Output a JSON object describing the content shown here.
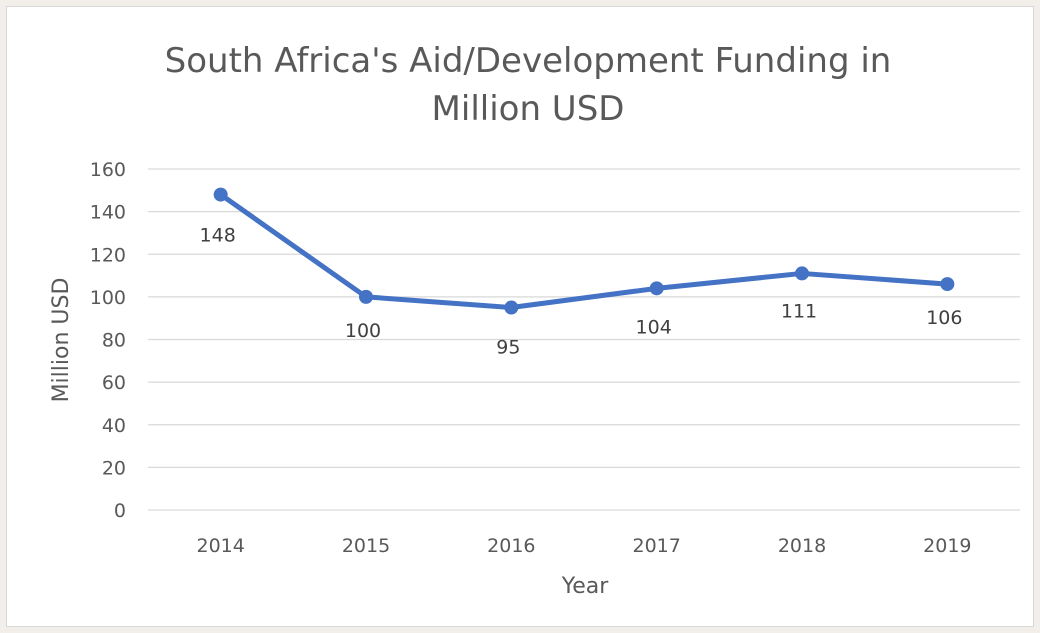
{
  "chart_data": {
    "type": "line",
    "title": "South Africa's Aid/Development Funding in Million USD",
    "title_lines": [
      "South Africa's Aid/Development Funding in",
      "Million USD"
    ],
    "xlabel": "Year",
    "ylabel": "Million USD",
    "categories": [
      "2014",
      "2015",
      "2016",
      "2017",
      "2018",
      "2019"
    ],
    "series": [
      {
        "values": [
          148,
          100,
          95,
          104,
          111,
          106
        ],
        "color": "#4472c4"
      }
    ],
    "data_labels": [
      "148",
      "100",
      "95",
      "104",
      "111",
      "106"
    ],
    "ylim": [
      0,
      160
    ],
    "yticks": [
      0,
      20,
      40,
      60,
      80,
      100,
      120,
      140,
      160
    ],
    "grid": true,
    "legend": "none"
  },
  "colors": {
    "line": "#4472c4",
    "gridline": "#d9d9d9",
    "text": "#595959",
    "background": "#f2efeb",
    "plot_background": "#ffffff"
  }
}
